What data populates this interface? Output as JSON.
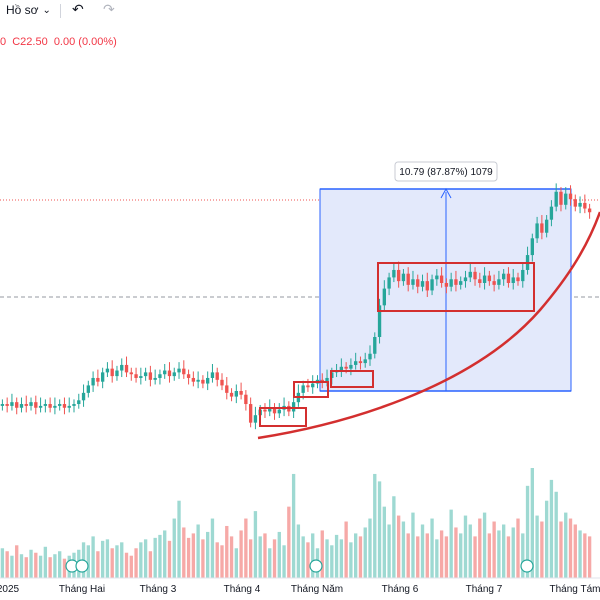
{
  "toolbar": {
    "profile_label": "Hồ sơ",
    "dropdown_icon": "chevron-down-icon",
    "undo_icon": "undo-icon",
    "redo_icon": "redo-icon"
  },
  "legend": {
    "ohlc_text": "0  C22.50  0.00 (0.00%)"
  },
  "measure": {
    "label": "10.79 (87.87%) 1079"
  },
  "colors": {
    "up": "#26a69a",
    "down": "#ef5350",
    "highlight": "#d32f2f",
    "measure_fill": "#e3e9fb",
    "measure_line": "#2962ff"
  },
  "chart_data": {
    "type": "candlestick",
    "x_labels": [
      "2025",
      "Tháng Hai",
      "Tháng 3",
      "Tháng 4",
      "Tháng Năm",
      "Tháng 6",
      "Tháng 7",
      "Tháng Tám"
    ],
    "closes": [
      12.2,
      12.1,
      12.3,
      12.0,
      12.2,
      12.1,
      12.3,
      12.0,
      12.1,
      12.2,
      12.0,
      12.1,
      12.2,
      12.0,
      12.1,
      12.2,
      12.4,
      12.8,
      13.2,
      13.6,
      13.4,
      13.9,
      14.1,
      13.7,
      14.0,
      14.3,
      13.9,
      13.8,
      13.6,
      13.7,
      13.9,
      13.5,
      13.6,
      13.8,
      14.0,
      13.7,
      13.9,
      14.1,
      13.8,
      13.6,
      13.4,
      13.5,
      13.3,
      13.6,
      13.9,
      13.5,
      13.2,
      12.8,
      12.6,
      12.9,
      12.7,
      12.2,
      11.2,
      11.6,
      11.9,
      11.8,
      12.0,
      11.7,
      11.9,
      12.1,
      11.8,
      12.3,
      12.8,
      13.2,
      13.1,
      13.3,
      13.5,
      13.4,
      13.6,
      13.9,
      14.0,
      14.2,
      14.1,
      14.3,
      14.5,
      14.4,
      14.6,
      14.9,
      15.8,
      17.5,
      18.4,
      19.0,
      19.4,
      18.8,
      19.2,
      18.6,
      18.9,
      18.5,
      18.8,
      18.3,
      18.9,
      19.1,
      18.7,
      18.5,
      18.9,
      18.6,
      18.8,
      19.0,
      19.3,
      18.9,
      18.7,
      19.1,
      18.8,
      18.6,
      18.9,
      19.2,
      18.7,
      19.0,
      18.8,
      19.4,
      20.2,
      21.1,
      21.9,
      21.4,
      22.1,
      22.8,
      23.6,
      22.9,
      23.5,
      23.2,
      22.8,
      23.0,
      22.7,
      22.5
    ],
    "volumes": [
      20,
      18,
      15,
      22,
      16,
      14,
      19,
      17,
      15,
      21,
      14,
      16,
      18,
      13,
      15,
      17,
      19,
      24,
      22,
      28,
      18,
      25,
      26,
      20,
      22,
      24,
      17,
      15,
      20,
      24,
      26,
      18,
      27,
      29,
      32,
      25,
      40,
      52,
      34,
      27,
      30,
      36,
      26,
      31,
      40,
      24,
      22,
      35,
      28,
      20,
      32,
      40,
      26,
      45,
      28,
      30,
      20,
      26,
      31,
      22,
      48,
      70,
      36,
      28,
      24,
      30,
      20,
      32,
      26,
      22,
      29,
      26,
      38,
      24,
      30,
      28,
      34,
      40,
      70,
      65,
      48,
      36,
      55,
      42,
      38,
      30,
      44,
      28,
      36,
      30,
      40,
      26,
      32,
      28,
      46,
      34,
      30,
      42,
      36,
      28,
      40,
      44,
      30,
      38,
      32,
      36,
      28,
      34,
      40,
      30,
      62,
      74,
      42,
      38,
      52,
      66,
      58,
      38,
      44,
      40,
      36,
      32,
      30,
      28
    ],
    "annotations": [
      "accumulation boxes",
      "measure range",
      "rising support curve"
    ]
  }
}
